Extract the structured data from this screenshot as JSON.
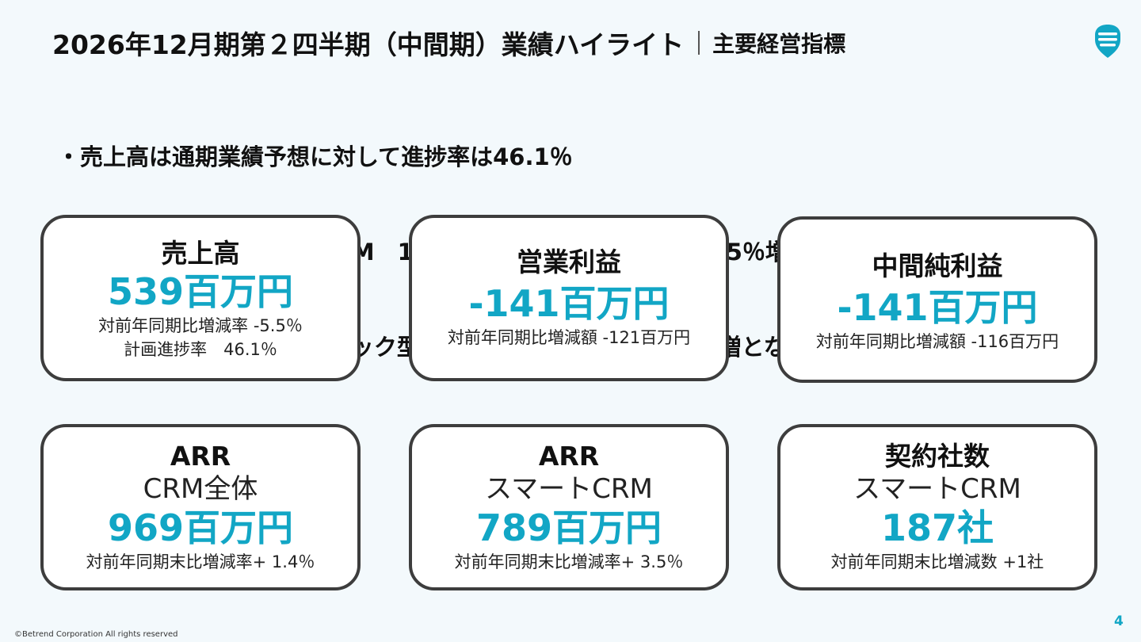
{
  "header": {
    "title": "2026年12月期第２四半期（中間期）業績ハイライト",
    "subtitle": "主要経営指標"
  },
  "bullets": [
    "・売上高は通期業績予想に対して進捗率は46.1％",
    "・ARR対前年増減率：全CRM　1.4％増　　スマートCRM　3.5％増",
    "・SaaS部分の売上高はストック型であるため、年後半に向け漸増となる計画。"
  ],
  "cards": [
    {
      "title": "売上高",
      "value": "539百万円",
      "notes": [
        "対前年同期比増減率 -5.5％",
        "計画進捗率　46.1％"
      ]
    },
    {
      "title": "営業利益",
      "value": "-141百万円",
      "notes": [
        "対前年同期比増減額 -121百万円"
      ]
    },
    {
      "title": "中間純利益",
      "value": "-141百万円",
      "notes": [
        "対前年同期比増減額 -116百万円"
      ]
    },
    {
      "title": "ARR",
      "subtitle": "CRM全体",
      "value": "969百万円",
      "notes": [
        "対前年同期末比増減率+ 1.4％"
      ]
    },
    {
      "title": "ARR",
      "subtitle": "スマートCRM",
      "value": "789百万円",
      "notes": [
        "対前年同期末比増減率+ 3.5％"
      ]
    },
    {
      "title": "契約社数",
      "subtitle": "スマートCRM",
      "value": "187社",
      "notes": [
        "対前年同期末比増減数 +1社"
      ]
    }
  ],
  "footer": {
    "copyright": "©Betrend Corporation All rights reserved",
    "page_number": "4"
  },
  "colors": {
    "accent": "#12a6c5",
    "card_border": "#3d3d3d",
    "background": "#f3f9fc"
  },
  "icons": {
    "logo": "betrend-logo-icon"
  }
}
